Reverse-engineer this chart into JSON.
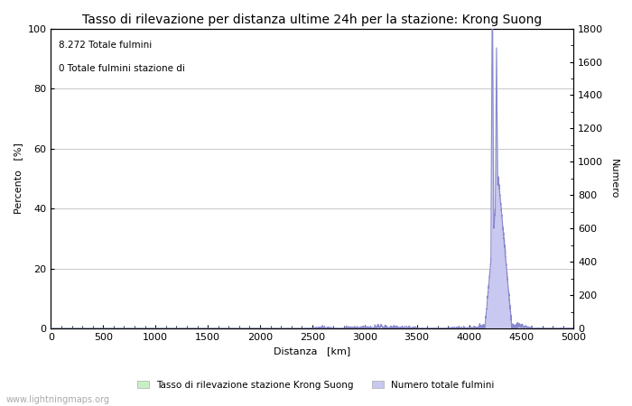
{
  "title": "Tasso di rilevazione per distanza ultime 24h per la stazione: Krong Suong",
  "xlabel": "Distanza   [km]",
  "ylabel_left": "Percento   [%]",
  "ylabel_right": "Numero",
  "annotation_lines": [
    "8.272 Totale fulmini",
    "0 Totale fulmini stazione di"
  ],
  "xlim": [
    0,
    5000
  ],
  "ylim_left": [
    0,
    100
  ],
  "ylim_right": [
    0,
    1800
  ],
  "xticks": [
    0,
    500,
    1000,
    1500,
    2000,
    2500,
    3000,
    3500,
    4000,
    4500,
    5000
  ],
  "yticks_left": [
    0,
    20,
    40,
    60,
    80,
    100
  ],
  "yticks_right": [
    0,
    200,
    400,
    600,
    800,
    1000,
    1200,
    1400,
    1600,
    1800
  ],
  "legend_label_left": "Tasso di rilevazione stazione Krong Suong",
  "legend_label_right": "Numero totale fulmini",
  "fill_color_left": "#c8f0c8",
  "fill_color_right": "#c8c8f0",
  "line_color_left": "#90c890",
  "line_color_right": "#8888cc",
  "background_color": "#ffffff",
  "grid_color": "#c8c8c8",
  "title_fontsize": 10,
  "axis_fontsize": 8,
  "tick_fontsize": 8,
  "watermark": "www.lightningmaps.org"
}
